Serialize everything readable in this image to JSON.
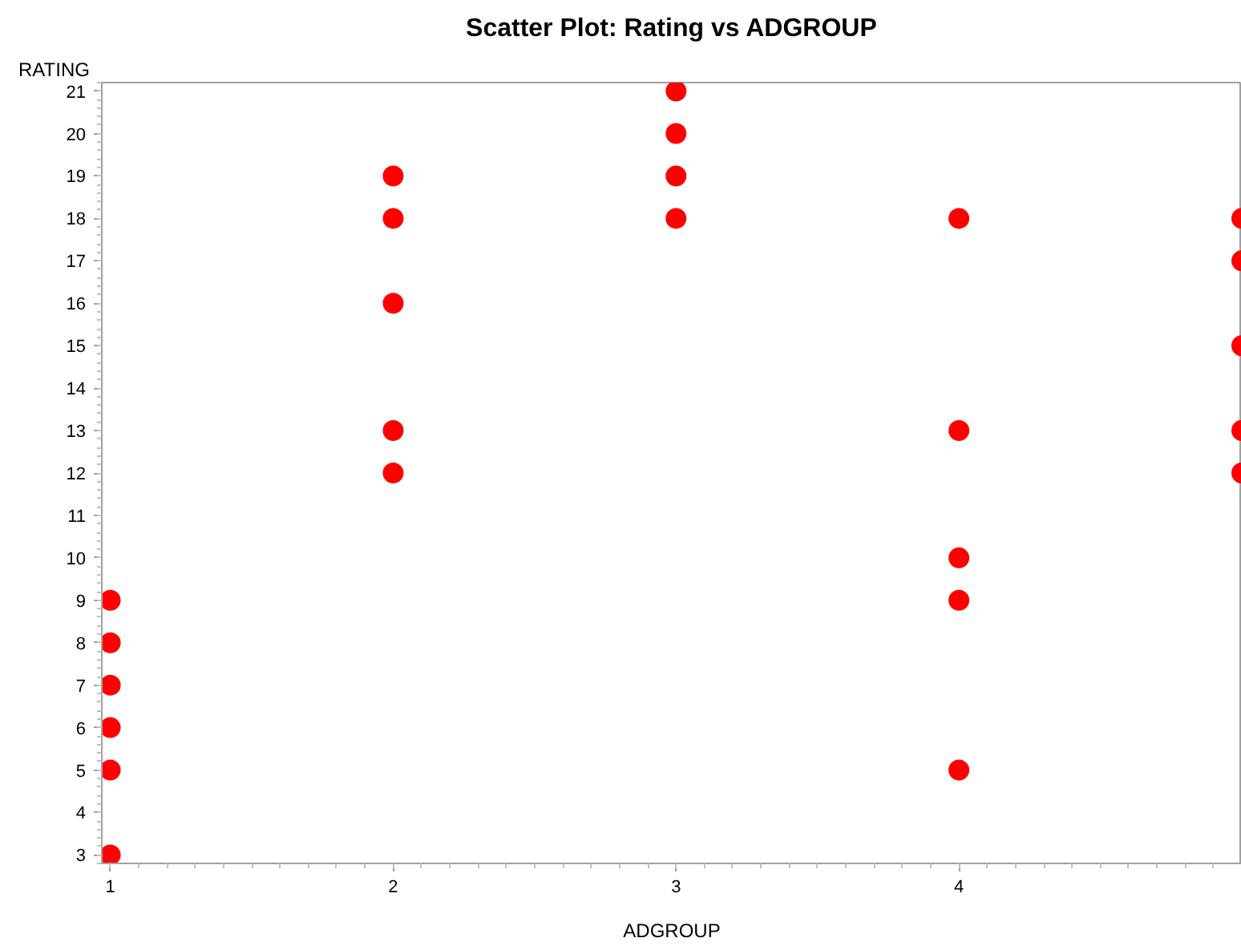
{
  "chart_data": {
    "type": "scatter",
    "title": "Scatter Plot: Rating vs ADGROUP",
    "xlabel": "ADGROUP",
    "ylabel": "RATING",
    "x": [
      1,
      1,
      1,
      1,
      1,
      1,
      2,
      2,
      2,
      2,
      2,
      3,
      3,
      3,
      3,
      4,
      4,
      4,
      4,
      4,
      5,
      5,
      5,
      5,
      5
    ],
    "series": [
      {
        "color": "#ff0000",
        "values": [
          9,
          8,
          7,
          6,
          5,
          3,
          19,
          18,
          16,
          13,
          12,
          21,
          20,
          19,
          18,
          18,
          13,
          10,
          9,
          5,
          18,
          17,
          15,
          13,
          12
        ]
      }
    ],
    "xlim": [
      0.97,
      5
    ],
    "xticks": [
      1,
      2,
      3,
      4
    ],
    "ylim": [
      2.8,
      21.2
    ],
    "yticks": [
      3,
      4,
      5,
      6,
      7,
      8,
      9,
      10,
      11,
      12,
      13,
      14,
      15,
      16,
      17,
      18,
      19,
      20,
      21
    ],
    "marker": "circle"
  }
}
